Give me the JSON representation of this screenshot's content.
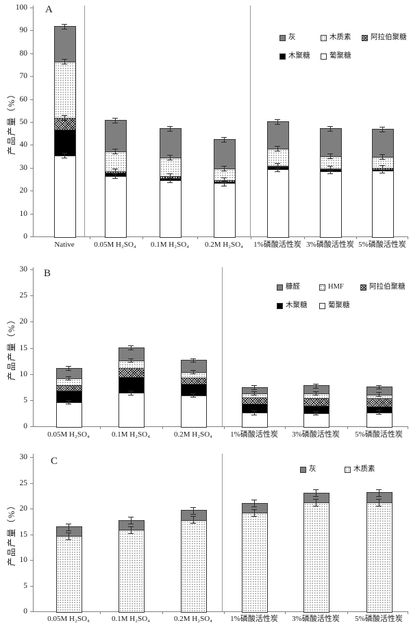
{
  "colors": {
    "segment_gray": "#7f7f7f",
    "segment_black": "#000000",
    "segment_white": "#ffffff",
    "pattern_dot_color": "#8f8f8f",
    "axis_color": "#7f7f7f"
  },
  "chart_data": [
    {
      "type": "bar",
      "stacked": true,
      "title": "A",
      "ylabel": "产品产量（%）",
      "xlabel": "",
      "ylim": [
        0,
        100
      ],
      "ytick_step": 10,
      "grid": false,
      "legend_position": "upper-right-inside",
      "categories": [
        "Native",
        "0.05M H₂SO₄",
        "0.1M H₂SO₄",
        "0.2M H₂SO₄",
        "1%磷酸活性炭",
        "3%磷酸活性炭",
        "5%磷酸活性炭"
      ],
      "series": [
        {
          "name": "葡聚糖",
          "pattern": "white",
          "values": [
            35.5,
            26.5,
            24.8,
            23.5,
            29.5,
            28.8,
            29.0
          ]
        },
        {
          "name": "木聚糖",
          "pattern": "black",
          "values": [
            11.5,
            1.5,
            1.0,
            0.8,
            1.2,
            0.8,
            0.7
          ]
        },
        {
          "name": "阿拉伯聚糖",
          "pattern": "crosshatch",
          "values": [
            5.0,
            0.6,
            0.7,
            0.4,
            0.3,
            0.4,
            0.4
          ]
        },
        {
          "name": "木质素",
          "pattern": "dotted",
          "values": [
            24.5,
            8.9,
            8.3,
            5.3,
            7.5,
            5.2,
            4.9
          ]
        },
        {
          "name": "灰",
          "pattern": "gray",
          "values": [
            15.5,
            13.3,
            12.4,
            12.4,
            11.8,
            12.1,
            12.0
          ]
        }
      ],
      "totals": [
        92.0,
        50.8,
        47.2,
        42.4,
        50.3,
        47.3,
        47.0
      ],
      "error_bar": 0.9,
      "whisker_series": [
        "葡聚糖",
        "阿拉伯聚糖",
        "木质素",
        "灰"
      ],
      "legend_rows": [
        [
          "灰",
          "木质素",
          "阿拉伯聚糖"
        ],
        [
          "木聚糖",
          "葡聚糖"
        ]
      ]
    },
    {
      "type": "bar",
      "stacked": true,
      "title": "B",
      "ylabel": "产品产量（%）",
      "xlabel": "",
      "ylim": [
        0,
        30
      ],
      "ytick_step": 5,
      "grid": false,
      "legend_position": "upper-right-inside",
      "categories": [
        "0.05M H₂SO₄",
        "0.1M H₂SO₄",
        "0.2M H₂SO₄",
        "1%磷酸活性炭",
        "3%磷酸活性炭",
        "5%磷酸活性炭"
      ],
      "series": [
        {
          "name": "葡聚糖",
          "pattern": "white",
          "values": [
            4.7,
            6.5,
            6.0,
            2.7,
            2.6,
            2.8
          ]
        },
        {
          "name": "木聚糖",
          "pattern": "black",
          "values": [
            2.3,
            3.0,
            2.2,
            1.7,
            1.5,
            1.1
          ]
        },
        {
          "name": "阿拉伯聚糖",
          "pattern": "crosshatch",
          "values": [
            1.0,
            1.7,
            1.2,
            1.2,
            1.4,
            1.6
          ]
        },
        {
          "name": "HMF",
          "pattern": "dotted",
          "values": [
            1.3,
            1.5,
            1.1,
            0.8,
            0.9,
            0.7
          ]
        },
        {
          "name": "糠醛",
          "pattern": "gray",
          "values": [
            1.9,
            2.4,
            2.2,
            1.1,
            1.4,
            1.4
          ]
        }
      ],
      "totals": [
        11.2,
        15.1,
        12.7,
        7.5,
        7.8,
        7.6
      ],
      "error_bar": 0.3,
      "whisker_series": [
        "葡聚糖",
        "HMF",
        "糠醛"
      ],
      "legend_rows": [
        [
          "糠醛",
          "HMF",
          "阿拉伯聚糖"
        ],
        [
          "木聚糖",
          "葡聚糖"
        ]
      ]
    },
    {
      "type": "bar",
      "stacked": true,
      "title": "C",
      "ylabel": "产品产量（%）",
      "xlabel": "",
      "ylim": [
        0,
        30
      ],
      "ytick_step": 5,
      "grid": false,
      "legend_position": "upper-right-inside",
      "categories": [
        "0.05M H₂SO₄",
        "0.1M H₂SO₄",
        "0.2M H₂SO₄",
        "1%磷酸活性炭",
        "3%磷酸活性炭",
        "5%磷酸活性炭"
      ],
      "series": [
        {
          "name": "木质素",
          "pattern": "dotted",
          "values": [
            14.8,
            16.0,
            17.9,
            19.3,
            21.3,
            21.3
          ]
        },
        {
          "name": "灰",
          "pattern": "gray",
          "values": [
            1.7,
            1.8,
            1.8,
            1.8,
            1.8,
            1.9
          ]
        }
      ],
      "totals": [
        16.5,
        17.8,
        19.7,
        21.1,
        23.1,
        23.2
      ],
      "error_bar": 0.6,
      "whisker_series": [
        "木质素",
        "灰"
      ],
      "legend_rows": [
        [
          "灰",
          "木质素"
        ]
      ]
    }
  ]
}
